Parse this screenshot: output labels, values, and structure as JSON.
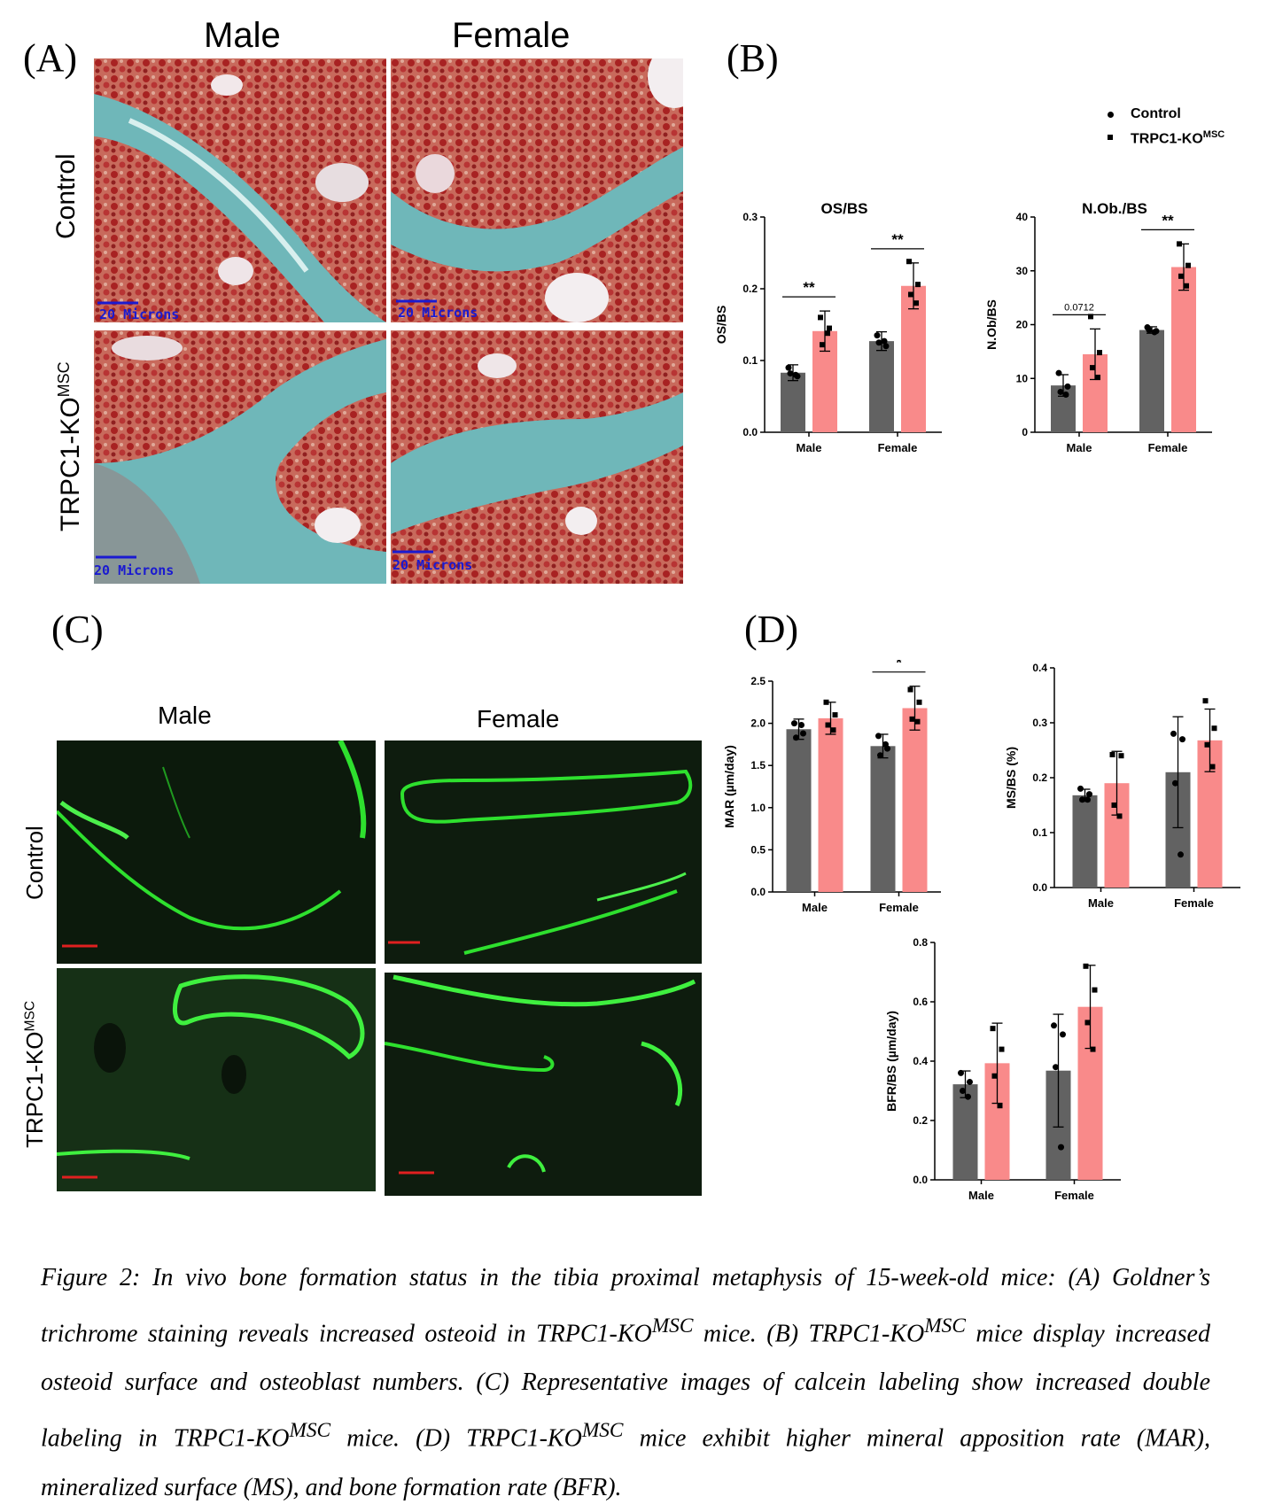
{
  "panels": {
    "A": {
      "letter": "(A)",
      "col_male": "Male",
      "col_female": "Female",
      "row_control": "Control",
      "row_ko": "TRPC1-KO",
      "row_ko_sup": "MSC",
      "scale_label": "20 Microns"
    },
    "B": {
      "letter": "(B)"
    },
    "C": {
      "letter": "(C)",
      "col_male": "Male",
      "col_female": "Female",
      "row_control": "Control",
      "row_ko": "TRPC1-KO",
      "row_ko_sup": "MSC"
    },
    "D": {
      "letter": "(D)"
    }
  },
  "legend": {
    "control": "Control",
    "ko": "TRPC1-KO",
    "ko_sup": "MSC"
  },
  "colors": {
    "control": "#626262",
    "ko": "#f98a8a",
    "stain_bone": "#6fb7b9",
    "stain_marrow": "#b73030",
    "calcein": "#2ee02e"
  },
  "chart_data": [
    {
      "id": "os-bs",
      "type": "bar",
      "title": "OS/BS",
      "ylabel": "OS/BS",
      "categories": [
        "Male",
        "Female"
      ],
      "ylim": [
        0,
        0.3
      ],
      "yticks": [
        "0.0",
        "0.1",
        "0.2",
        "0.3"
      ],
      "series": [
        {
          "name": "Control",
          "values": [
            0.083,
            0.127
          ],
          "err": [
            0.011,
            0.013
          ],
          "points": [
            [
              0.09,
              0.078,
              0.082,
              0.08
            ],
            [
              0.135,
              0.12,
              0.125,
              0.127
            ]
          ]
        },
        {
          "name": "TRPC1-KO",
          "values": [
            0.141,
            0.204
          ],
          "err": [
            0.028,
            0.032
          ],
          "points": [
            [
              0.16,
              0.145,
              0.122,
              0.138
            ],
            [
              0.238,
              0.206,
              0.192,
              0.18
            ]
          ]
        }
      ],
      "annotations": [
        {
          "group": "Male",
          "text": "**"
        },
        {
          "group": "Female",
          "text": "**"
        }
      ]
    },
    {
      "id": "nob-bs",
      "type": "bar",
      "title": "N.Ob./BS",
      "ylabel": "N.Ob/BS",
      "categories": [
        "Male",
        "Female"
      ],
      "ylim": [
        0,
        40
      ],
      "yticks": [
        "0",
        "10",
        "20",
        "30",
        "40"
      ],
      "series": [
        {
          "name": "Control",
          "values": [
            8.7,
            19.0
          ],
          "err": [
            2.0,
            0.6
          ],
          "points": [
            [
              11.0,
              8.5,
              7.5,
              7.0
            ],
            [
              19.5,
              18.8,
              19.0,
              18.6
            ]
          ]
        },
        {
          "name": "TRPC1-KO",
          "values": [
            14.5,
            30.7
          ],
          "err": [
            4.7,
            4.3
          ],
          "points": [
            [
              21.5,
              14.8,
              12.0,
              10.2
            ],
            [
              35.0,
              31.0,
              29.0,
              27.2
            ]
          ]
        }
      ],
      "annotations": [
        {
          "group": "Male",
          "text": "0.0712"
        },
        {
          "group": "Female",
          "text": "**"
        }
      ]
    },
    {
      "id": "mar",
      "type": "bar",
      "title": "",
      "ylabel": "MAR (µm/day)",
      "categories": [
        "Male",
        "Female"
      ],
      "ylim": [
        0,
        2.5
      ],
      "yticks": [
        "0.0",
        "0.5",
        "1.0",
        "1.5",
        "2.0",
        "2.5"
      ],
      "series": [
        {
          "name": "Control",
          "values": [
            1.93,
            1.73
          ],
          "err": [
            0.12,
            0.14
          ],
          "points": [
            [
              2.0,
              1.88,
              1.83,
              1.98
            ],
            [
              1.85,
              1.7,
              1.62,
              1.75
            ]
          ]
        },
        {
          "name": "TRPC1-KO",
          "values": [
            2.06,
            2.18
          ],
          "err": [
            0.19,
            0.26
          ],
          "points": [
            [
              2.25,
              2.1,
              1.98,
              1.92
            ],
            [
              2.4,
              2.25,
              2.05,
              2.02
            ]
          ]
        }
      ],
      "annotations": [
        {
          "group": "Female",
          "text": "*"
        }
      ]
    },
    {
      "id": "ms-bs",
      "type": "bar",
      "title": "",
      "ylabel": "MS/BS (%)",
      "categories": [
        "Male",
        "Female"
      ],
      "ylim": [
        0,
        0.4
      ],
      "yticks": [
        "0.0",
        "0.1",
        "0.2",
        "0.3",
        "0.4"
      ],
      "series": [
        {
          "name": "Control",
          "values": [
            0.168,
            0.21
          ],
          "err": [
            0.011,
            0.101
          ],
          "points": [
            [
              0.18,
              0.17,
              0.16,
              0.16
            ],
            [
              0.28,
              0.27,
              0.19,
              0.06
            ]
          ]
        },
        {
          "name": "TRPC1-KO",
          "values": [
            0.19,
            0.268
          ],
          "err": [
            0.058,
            0.057
          ],
          "points": [
            [
              0.242,
              0.24,
              0.15,
              0.13
            ],
            [
              0.34,
              0.29,
              0.26,
              0.22
            ]
          ]
        }
      ],
      "annotations": []
    },
    {
      "id": "bfr-bs",
      "type": "bar",
      "title": "",
      "ylabel": "BFR/BS (µm/day)",
      "categories": [
        "Male",
        "Female"
      ],
      "ylim": [
        0,
        0.8
      ],
      "yticks": [
        "0.0",
        "0.2",
        "0.4",
        "0.6",
        "0.8"
      ],
      "series": [
        {
          "name": "Control",
          "values": [
            0.322,
            0.368
          ],
          "err": [
            0.045,
            0.19
          ],
          "points": [
            [
              0.36,
              0.33,
              0.3,
              0.28
            ],
            [
              0.52,
              0.49,
              0.38,
              0.11
            ]
          ]
        },
        {
          "name": "TRPC1-KO",
          "values": [
            0.393,
            0.583
          ],
          "err": [
            0.135,
            0.14
          ],
          "points": [
            [
              0.51,
              0.44,
              0.35,
              0.25
            ],
            [
              0.72,
              0.64,
              0.53,
              0.44
            ]
          ]
        }
      ],
      "annotations": []
    }
  ],
  "caption": {
    "p1": "Figure 2: In vivo bone formation status in the tibia proximal metaphysis of 15-week-old mice: (A) Goldner’s trichrome staining reveals increased osteoid in TRPC1-KO",
    "p2": " mice. (B) TRPC1-KO",
    "p3": " mice display increased osteoid surface and osteoblast numbers. (C) Representative images of calcein labeling show increased double labeling in TRPC1-KO",
    "p4": " mice. (D) TRPC1-KO",
    "p5": " mice exhibit higher mineral apposition rate (MAR), mineralized surface (MS), and bone formation rate (BFR).",
    "sup": "MSC"
  }
}
